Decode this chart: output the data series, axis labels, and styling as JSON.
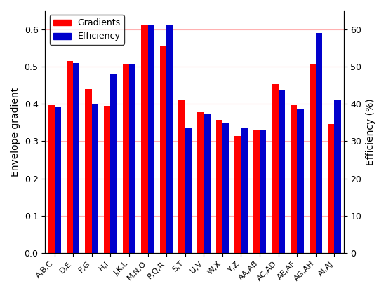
{
  "categories": [
    "A,B,C",
    "D,E",
    "F,G",
    "H,I",
    "J,K,L",
    "M,N,O",
    "P,Q,R",
    "S,T",
    "U,V",
    "W,X",
    "Y,Z",
    "AA,AB",
    "AC,AD",
    "AE,AF",
    "AG,AH",
    "AI,AJ"
  ],
  "gradients": [
    0.397,
    0.515,
    0.44,
    0.395,
    0.505,
    0.61,
    0.555,
    0.41,
    0.377,
    0.357,
    0.313,
    0.328,
    0.453,
    0.397,
    0.505,
    0.345
  ],
  "efficiency": [
    0.39,
    0.51,
    0.4,
    0.48,
    0.508,
    0.61,
    0.61,
    0.335,
    0.373,
    0.35,
    0.335,
    0.328,
    0.435,
    0.385,
    0.59,
    0.41
  ],
  "bar_color_red": "#ff0000",
  "bar_color_blue": "#0000cc",
  "ylabel_left": "Envelope gradient",
  "ylabel_right": "Efficiency (%)",
  "ylim_left": [
    0.0,
    0.65
  ],
  "ylim_right": [
    0,
    65
  ],
  "yticks_left": [
    0.0,
    0.1,
    0.2,
    0.3,
    0.4,
    0.5,
    0.6
  ],
  "yticks_right_vals": [
    0,
    10,
    20,
    30,
    40,
    50,
    60
  ],
  "yticks_right_positions": [
    0.0,
    0.1,
    0.2,
    0.3,
    0.4,
    0.5,
    0.6
  ],
  "legend_labels": [
    "Gradients",
    "Efficiency"
  ],
  "grid_color": "#ffb0b0",
  "background_color": "#ffffff",
  "bar_width": 0.35,
  "figsize": [
    5.5,
    4.18
  ],
  "dpi": 100
}
